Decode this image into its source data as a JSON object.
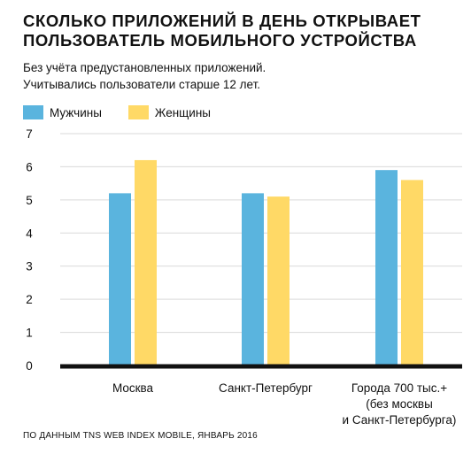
{
  "chart_data": {
    "type": "bar",
    "title": "СКОЛЬКО ПРИЛОЖЕНИЙ В ДЕНЬ ОТКРЫВАЕТ ПОЛЬЗОВАТЕЛЬ МОБИЛЬНОГО УСТРОЙСТВА",
    "subtitle": [
      "Без учёта предустановленных приложений.",
      "Учитывались пользователи старше 12 лет."
    ],
    "categories": [
      [
        "Москва"
      ],
      [
        "Санкт-Петербург"
      ],
      [
        "Города 700 тыс.+",
        "(без москвы",
        "и Санкт-Петербурга)"
      ]
    ],
    "series": [
      {
        "name": "Мужчины",
        "color": "#5ab4de",
        "values": [
          5.2,
          5.2,
          5.9
        ]
      },
      {
        "name": "Женщины",
        "color": "#ffd966",
        "values": [
          6.2,
          5.1,
          5.6
        ]
      }
    ],
    "yticks": [
      "0",
      "1",
      "2",
      "3",
      "4",
      "5",
      "6",
      "7"
    ],
    "ylim": [
      0,
      7
    ],
    "grid": true,
    "legend": "top-left",
    "source": "ПО ДАННЫМ TNS WEB INDEX MOBILE, ЯНВАРЬ 2016"
  }
}
